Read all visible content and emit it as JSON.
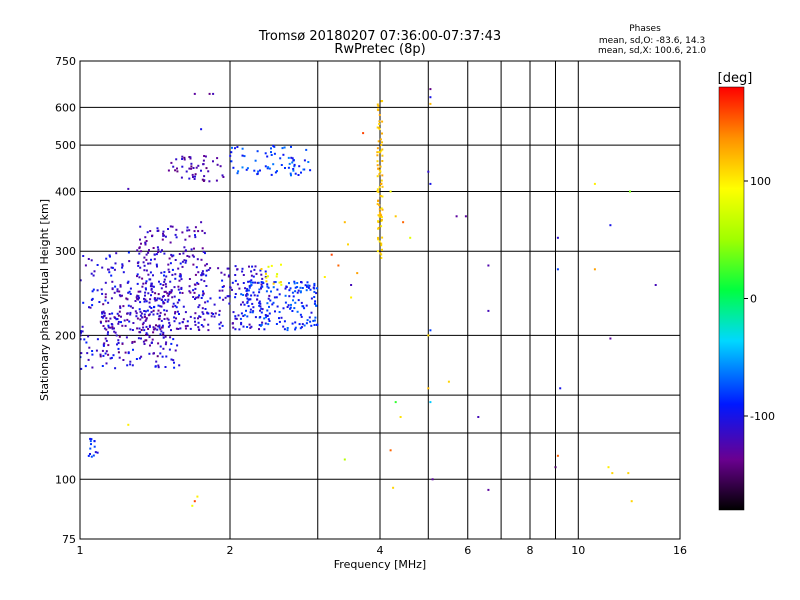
{
  "chart_data": {
    "type": "scatter",
    "title": "Tromsø 20180207 07:36:00-07:37:43",
    "subtitle": "RwPretec (8p)",
    "xlabel": "Frequency [MHz]",
    "ylabel": "Stationary phase Virtual Height [km]",
    "x_scale": "log",
    "y_scale": "log",
    "xlim": [
      1,
      16
    ],
    "ylim": [
      75,
      750
    ],
    "grid": true,
    "x_ticks": [
      1,
      2,
      4,
      6,
      8,
      10,
      16
    ],
    "x_tick_labels": [
      "1",
      "2",
      "4",
      "6",
      "8",
      "10",
      "16"
    ],
    "y_ticks": [
      75,
      100,
      200,
      300,
      400,
      500,
      600,
      750
    ],
    "y_tick_labels": [
      "75",
      "100",
      "200",
      "300",
      "400",
      "500",
      "600",
      "750"
    ],
    "stats": {
      "heading": "Phases",
      "line_o": "mean, sd,O: -83.6, 14.3",
      "line_x": "mean, sd,X: 100.6, 21.0"
    },
    "colorbar": {
      "unit": "[deg]",
      "range": [
        -180,
        180
      ],
      "ticks": [
        100,
        0,
        -100
      ],
      "tick_labels": [
        "100",
        "0",
        "-100"
      ]
    },
    "scatter_clusters": [
      {
        "x_range": [
          1.0,
          1.6
        ],
        "y_range": [
          170,
          300
        ],
        "phase": -105,
        "count": 260
      },
      {
        "x_range": [
          1.1,
          1.5
        ],
        "y_range": [
          180,
          250
        ],
        "phase": -125,
        "count": 120
      },
      {
        "x_range": [
          1.3,
          1.8
        ],
        "y_range": [
          205,
          340
        ],
        "phase": -118,
        "count": 220
      },
      {
        "x_range": [
          1.7,
          2.4
        ],
        "y_range": [
          205,
          280
        ],
        "phase": -110,
        "count": 150
      },
      {
        "x_range": [
          2.1,
          3.0
        ],
        "y_range": [
          205,
          260
        ],
        "phase": -85,
        "count": 170
      },
      {
        "x_range": [
          1.5,
          1.95
        ],
        "y_range": [
          420,
          475
        ],
        "phase": -125,
        "count": 50
      },
      {
        "x_range": [
          2.0,
          2.9
        ],
        "y_range": [
          430,
          500
        ],
        "phase": -80,
        "count": 70
      },
      {
        "x_range": [
          1.04,
          1.09
        ],
        "y_range": [
          110,
          122
        ],
        "phase": -90,
        "count": 14
      },
      {
        "x_range": [
          2.3,
          2.7
        ],
        "y_range": [
          255,
          285
        ],
        "phase": 95,
        "count": 14
      }
    ],
    "scatter_trails": [
      {
        "x_range": [
          3.95,
          4.05
        ],
        "y_range": [
          290,
          620
        ],
        "phase": 115,
        "count": 80
      }
    ],
    "scatter_points": [
      {
        "x": 1.7,
        "y": 640,
        "phase": -130
      },
      {
        "x": 1.82,
        "y": 640,
        "phase": -140
      },
      {
        "x": 1.85,
        "y": 640,
        "phase": -120
      },
      {
        "x": 1.75,
        "y": 540,
        "phase": -100
      },
      {
        "x": 1.75,
        "y": 345,
        "phase": -120
      },
      {
        "x": 1.25,
        "y": 405,
        "phase": -120
      },
      {
        "x": 1.25,
        "y": 130,
        "phase": 100
      },
      {
        "x": 1.7,
        "y": 90,
        "phase": 160
      },
      {
        "x": 1.72,
        "y": 92,
        "phase": 100
      },
      {
        "x": 1.68,
        "y": 88,
        "phase": 90
      },
      {
        "x": 3.7,
        "y": 530,
        "phase": 160
      },
      {
        "x": 3.4,
        "y": 345,
        "phase": 120
      },
      {
        "x": 3.3,
        "y": 280,
        "phase": 150
      },
      {
        "x": 3.6,
        "y": 270,
        "phase": 130
      },
      {
        "x": 3.5,
        "y": 255,
        "phase": -120
      },
      {
        "x": 3.5,
        "y": 240,
        "phase": 100
      },
      {
        "x": 3.2,
        "y": 295,
        "phase": 160
      },
      {
        "x": 3.1,
        "y": 265,
        "phase": 100
      },
      {
        "x": 3.45,
        "y": 310,
        "phase": 110
      },
      {
        "x": 3.4,
        "y": 110,
        "phase": 60
      },
      {
        "x": 4.2,
        "y": 400,
        "phase": 90
      },
      {
        "x": 4.3,
        "y": 355,
        "phase": 115
      },
      {
        "x": 4.45,
        "y": 345,
        "phase": 150
      },
      {
        "x": 4.6,
        "y": 320,
        "phase": 80
      },
      {
        "x": 4.3,
        "y": 145,
        "phase": 20
      },
      {
        "x": 4.4,
        "y": 135,
        "phase": 105
      },
      {
        "x": 4.2,
        "y": 115,
        "phase": 150
      },
      {
        "x": 4.25,
        "y": 96,
        "phase": 110
      },
      {
        "x": 5.05,
        "y": 655,
        "phase": -140
      },
      {
        "x": 5.05,
        "y": 630,
        "phase": -100
      },
      {
        "x": 5.05,
        "y": 610,
        "phase": 120
      },
      {
        "x": 5.0,
        "y": 440,
        "phase": -110
      },
      {
        "x": 5.05,
        "y": 415,
        "phase": -100
      },
      {
        "x": 5.05,
        "y": 205,
        "phase": -80
      },
      {
        "x": 5.0,
        "y": 200,
        "phase": 110
      },
      {
        "x": 5.0,
        "y": 155,
        "phase": 120
      },
      {
        "x": 5.05,
        "y": 145,
        "phase": -40
      },
      {
        "x": 5.1,
        "y": 100,
        "phase": -130
      },
      {
        "x": 5.5,
        "y": 160,
        "phase": 110
      },
      {
        "x": 5.7,
        "y": 355,
        "phase": -130
      },
      {
        "x": 5.95,
        "y": 355,
        "phase": -130
      },
      {
        "x": 6.3,
        "y": 135,
        "phase": -120
      },
      {
        "x": 6.6,
        "y": 280,
        "phase": -125
      },
      {
        "x": 6.6,
        "y": 225,
        "phase": -120
      },
      {
        "x": 6.6,
        "y": 95,
        "phase": -130
      },
      {
        "x": 9.1,
        "y": 320,
        "phase": -110
      },
      {
        "x": 9.1,
        "y": 275,
        "phase": -80
      },
      {
        "x": 9.2,
        "y": 155,
        "phase": -100
      },
      {
        "x": 9.1,
        "y": 112,
        "phase": 150
      },
      {
        "x": 9.0,
        "y": 106,
        "phase": -150
      },
      {
        "x": 10.8,
        "y": 415,
        "phase": 100
      },
      {
        "x": 10.8,
        "y": 275,
        "phase": 130
      },
      {
        "x": 11.6,
        "y": 340,
        "phase": -100
      },
      {
        "x": 11.6,
        "y": 197,
        "phase": -130
      },
      {
        "x": 11.5,
        "y": 106,
        "phase": 100
      },
      {
        "x": 11.7,
        "y": 103,
        "phase": 110
      },
      {
        "x": 12.7,
        "y": 400,
        "phase": 40
      },
      {
        "x": 12.6,
        "y": 103,
        "phase": 110
      },
      {
        "x": 12.8,
        "y": 90,
        "phase": 110
      },
      {
        "x": 14.3,
        "y": 255,
        "phase": -120
      }
    ]
  }
}
